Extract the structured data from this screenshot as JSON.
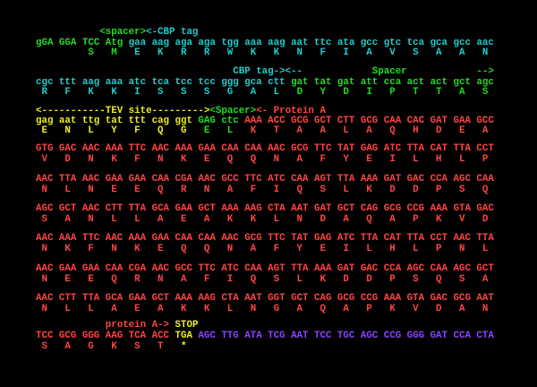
{
  "lines": [
    {
      "segments": [
        {
          "text": "<spacer>",
          "color": "#22dd22"
        },
        {
          "text": "<-CBP tag",
          "color": "#22cccc"
        }
      ]
    },
    {
      "segments": [
        {
          "text": "gGA GGA TCC Atg",
          "color": "#22dd22"
        },
        {
          "text": "gaa aag aga aga tgg aaa aag aat ttc ata gcc gtc tca gca gcc aac",
          "color": "#22cccc"
        }
      ]
    },
    {
      "segments": [
        {
          "text": "S   M",
          "color": "#22dd22"
        },
        {
          "text": "E   K   R   R   W   K   K   N   F   I   A   V   S   A   A   N",
          "color": "#22cccc"
        }
      ]
    },
    {
      "segments": [
        {
          "text": "CBP tag-><--",
          "color": "#22cccc"
        },
        {
          "text": "Spacer",
          "color": "#22dd22"
        },
        {
          "text": "-->",
          "color": "#22dd22"
        }
      ]
    },
    {
      "segments": [
        {
          "text": "cgc ttt aag aaa atc tca tcc tcc ggg gca ctt",
          "color": "#22cccc"
        },
        {
          "text": "gat tat gat att cca act act gct agc",
          "color": "#22dd22"
        }
      ]
    },
    {
      "segments": [
        {
          "text": "R   F   K   K   I   S   S   S   G   A   L",
          "color": "#22cccc"
        },
        {
          "text": "D   Y   D   I   P   T   T   A   S",
          "color": "#22dd22"
        }
      ]
    },
    {
      "segments": [
        {
          "text": "<-----------TEV site--------->",
          "color": "#eeee22"
        },
        {
          "text": "<Spacer>",
          "color": "#22dd22"
        },
        {
          "text": "<- Protein A",
          "color": "#ff4444"
        }
      ]
    },
    {
      "segments": [
        {
          "text": "gag aat ttg tat ttt cag ggt",
          "color": "#eeee22"
        },
        {
          "text": "GAG ctc",
          "color": "#22dd22"
        },
        {
          "text": "AAA ACC GCG GCT CTT GCG CAA CAC GAT GAA GCC",
          "color": "#ff4444"
        }
      ]
    },
    {
      "segments": [
        {
          "text": "E   N   L   Y   F   Q   G",
          "color": "#eeee22"
        },
        {
          "text": "E   L",
          "color": "#22dd22"
        },
        {
          "text": "K   T   A   A   L   A   Q   H   D   E   A",
          "color": "#ff4444"
        }
      ]
    },
    {
      "segments": [
        {
          "text": "GTG GAC AAC AAA TTC AAC AAA GAA CAA CAA AAC GCG TTC TAT GAG ATC TTA CAT TTA CCT",
          "color": "#ff4444"
        }
      ]
    },
    {
      "segments": [
        {
          "text": "V   D   N   K   F   N   K   E   Q   Q   N   A   F   Y   E   I   L   H   L   P",
          "color": "#ff4444"
        }
      ]
    },
    {
      "segments": [
        {
          "text": "AAC TTA AAC GAA GAA CAA CGA AAC GCC TTC ATC CAA AGT TTA AAA GAT GAC CCA AGC CAA",
          "color": "#ff4444"
        }
      ]
    },
    {
      "segments": [
        {
          "text": "N   L   N   E   E   Q   R   N   A   F   I   Q   S   L   K   D   D   P   S   Q",
          "color": "#ff4444"
        }
      ]
    },
    {
      "segments": [
        {
          "text": "AGC GCT AAC CTT TTA GCA GAA GCT AAA AAG CTA AAT GAT GCT CAG GCG CCG AAA GTA GAC",
          "color": "#ff4444"
        }
      ]
    },
    {
      "segments": [
        {
          "text": "S   A   N   L   L   A   E   A   K   K   L   N   D   A   Q   A   P   K   V   D",
          "color": "#ff4444"
        }
      ]
    },
    {
      "segments": [
        {
          "text": "AAC AAA TTC AAC AAA GAA CAA CAA AAC GCG TTC TAT GAG ATC TTA CAT TTA CCT AAC TTA",
          "color": "#ff4444"
        }
      ]
    },
    {
      "segments": [
        {
          "text": "N   K   F   N   K   E   Q   Q   N   A   F   Y   E   I   L   H   L   P   N   L",
          "color": "#ff4444"
        }
      ]
    },
    {
      "segments": [
        {
          "text": "AAC GAA GAA CAA CGA AAC GCC TTC ATC CAA AGT TTA AAA GAT GAC CCA AGC CAA AGC GCT",
          "color": "#ff4444"
        }
      ]
    },
    {
      "segments": [
        {
          "text": "N   E   E   Q   R   N   A   F   I   Q   S   L   K   D   D   P   S   Q   S   A",
          "color": "#ff4444"
        }
      ]
    },
    {
      "segments": [
        {
          "text": "AAC CTT TTA GCA GAA GCT AAA AAG CTA AAT GGT GCT CAG GCG CCG AAA GTA GAC GCG AAT",
          "color": "#ff4444"
        }
      ]
    },
    {
      "segments": [
        {
          "text": "N   L   L   A   E   A   K   K   L   N   G   A   Q   A   P   K   V   D   A   N",
          "color": "#ff4444"
        }
      ]
    },
    {
      "segments": [
        {
          "text": "protein A->",
          "color": "#ff4444"
        },
        {
          "text": "STOP",
          "color": "#eeee22"
        }
      ]
    },
    {
      "segments": [
        {
          "text": "TCC GCG GGG AAG TCA ACC",
          "color": "#ff4444"
        },
        {
          "text": "TGA",
          "color": "#eeee22"
        },
        {
          "text": "AGC TTG ATA TCG AAT TCC TGC AGC CCG GGG GAT CCA CTA",
          "color": "#8844ff"
        }
      ]
    },
    {
      "segments": [
        {
          "text": "S   A   G   K   S   T",
          "color": "#ff4444"
        },
        {
          "text": "*",
          "color": "#eeee22"
        }
      ]
    }
  ]
}
